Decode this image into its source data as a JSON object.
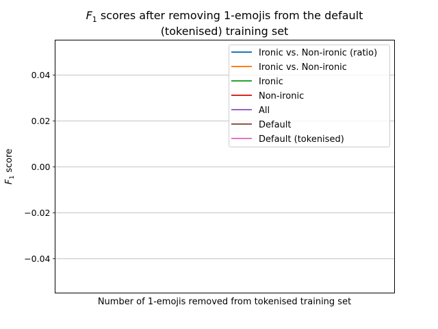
{
  "chart_data": {
    "type": "line",
    "title_prefix": "F",
    "title_subscript": "1",
    "title_rest_line1": " scores after removing 1-emojis from the default",
    "title_line2": "(tokenised) training set",
    "xlabel": "Number of 1-emojis removed from tokenised training set",
    "ylabel_prefix": "F",
    "ylabel_subscript": "1",
    "ylabel_rest": " score",
    "ylim": [
      -0.055,
      0.055
    ],
    "yticks": [
      -0.04,
      -0.02,
      0.0,
      0.02,
      0.04
    ],
    "ytick_labels": [
      "−0.04",
      "−0.02",
      "0.00",
      "0.02",
      "0.04"
    ],
    "grid": "y-major",
    "legend_position": "top-right",
    "series": [
      {
        "name": "Ironic vs. Non-ironic (ratio)",
        "color": "#1f77b4",
        "values": []
      },
      {
        "name": "Ironic vs. Non-ironic",
        "color": "#ff7f0e",
        "values": []
      },
      {
        "name": "Ironic",
        "color": "#2ca02c",
        "values": []
      },
      {
        "name": "Non-ironic",
        "color": "#d62728",
        "values": []
      },
      {
        "name": "All",
        "color": "#9467bd",
        "values": []
      },
      {
        "name": "Default",
        "color": "#8c564b",
        "values": []
      },
      {
        "name": "Default (tokenised)",
        "color": "#e377c2",
        "values": []
      }
    ]
  }
}
